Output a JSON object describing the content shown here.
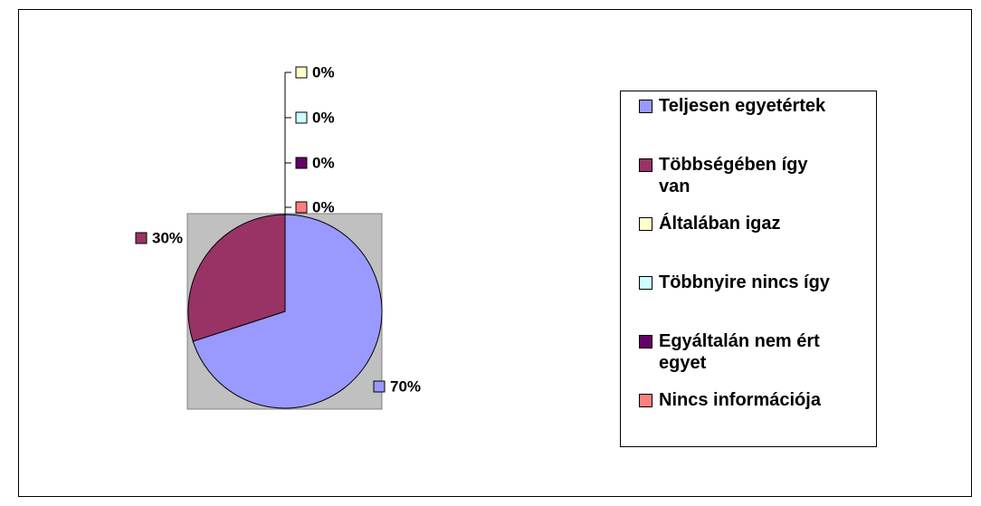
{
  "chart_data": {
    "type": "pie",
    "categories": [
      "Teljesen egyetértek",
      "Többségében így van",
      "Általában igaz",
      "Többnyire nincs így",
      "Egyáltalán nem ért egyet",
      "Nincs információja"
    ],
    "values": [
      70,
      30,
      0,
      0,
      0,
      0
    ],
    "value_labels": [
      "70%",
      "30%",
      "0%",
      "0%",
      "0%",
      "0%"
    ],
    "colors": [
      "#9999ff",
      "#993366",
      "#ffffcc",
      "#ccffff",
      "#660066",
      "#ff8080"
    ],
    "legend": "right"
  }
}
